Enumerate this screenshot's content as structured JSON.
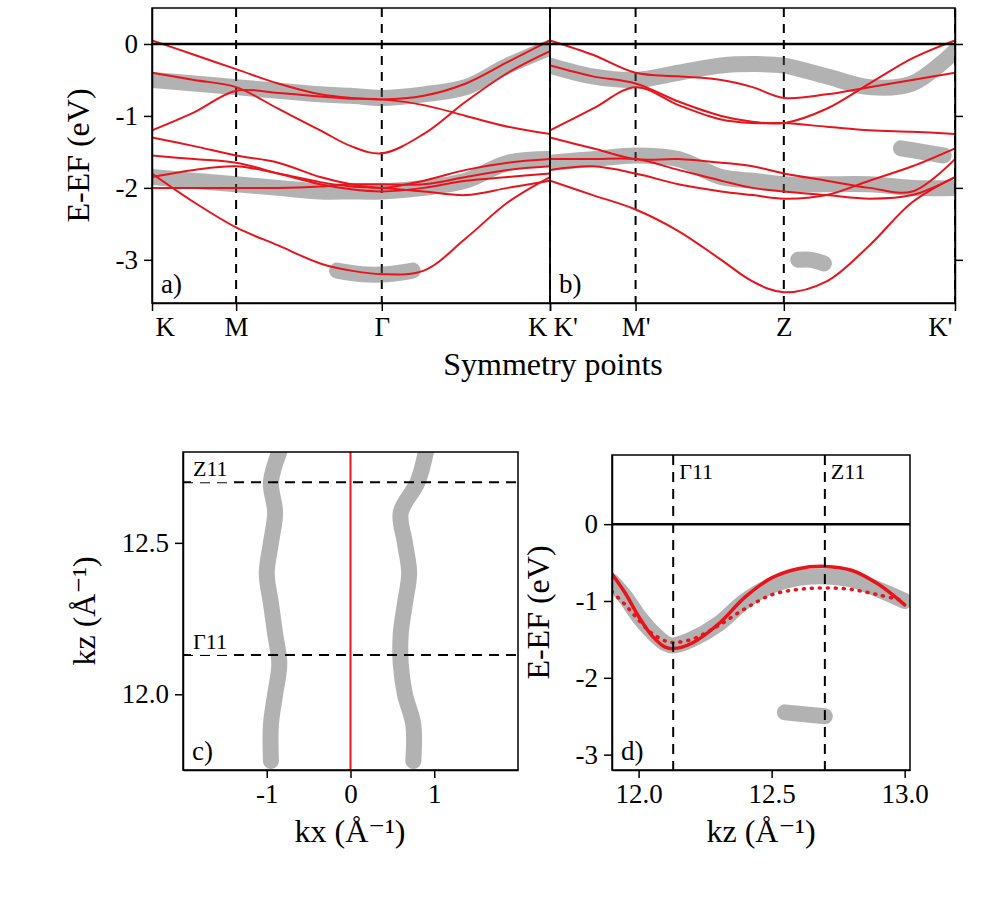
{
  "chart_data": [
    {
      "type": "line",
      "panel": "a)",
      "ylabel": "E-EF (eV)",
      "xlabel": "Symmetry points",
      "xlim": [
        0,
        4.732
      ],
      "ylim": [
        -3.6,
        0.5
      ],
      "xticks": [
        {
          "value": 0,
          "label": "K"
        },
        {
          "value": 1,
          "label": "M"
        },
        {
          "value": 2.732,
          "label": "Γ"
        },
        {
          "value": 4.732,
          "label": "K"
        }
      ],
      "yticks": [
        0,
        -1,
        -2,
        -3
      ],
      "grid": "x",
      "hline": 0,
      "x": [
        0,
        0.5,
        1,
        1.5,
        2,
        2.366,
        2.732,
        3.232,
        3.732,
        4.232,
        4.732
      ],
      "series": [
        {
          "color": "#555555",
          "line_style": "broad",
          "values": [
            -0.5,
            -0.55,
            -0.6,
            -0.65,
            -0.7,
            -0.72,
            -0.75,
            -0.7,
            -0.6,
            -0.3,
            -0.05
          ]
        },
        {
          "color": "#555555",
          "line_style": "broad",
          "values": [
            -1.85,
            -1.9,
            -1.95,
            -2.0,
            -2.05,
            -2.05,
            -2.05,
            -2.0,
            -1.9,
            -1.65,
            -1.6
          ]
        },
        {
          "color": "#555555",
          "line_style": "broad",
          "x": [
            2.2,
            2.5,
            2.8,
            3.1
          ],
          "values": [
            -3.15,
            -3.2,
            -3.2,
            -3.15
          ]
        },
        {
          "color": "#e8141c",
          "line_style": "solid",
          "values": [
            0.05,
            -0.15,
            -0.35,
            -0.55,
            -0.7,
            -0.75,
            -0.77,
            -0.72,
            -0.55,
            -0.25,
            0.05
          ]
        },
        {
          "color": "#e8141c",
          "line_style": "solid",
          "values": [
            -0.4,
            -0.5,
            -0.6,
            -0.9,
            -1.2,
            -1.42,
            -1.52,
            -1.25,
            -0.8,
            -0.4,
            -0.1
          ]
        },
        {
          "color": "#e8141c",
          "line_style": "solid",
          "values": [
            -1.2,
            -0.95,
            -0.65,
            -0.68,
            -0.73,
            -0.76,
            -0.77,
            -0.85,
            -1.0,
            -1.15,
            -1.25
          ]
        },
        {
          "color": "#e8141c",
          "line_style": "solid",
          "values": [
            -1.3,
            -1.42,
            -1.55,
            -1.65,
            -1.85,
            -1.95,
            -2.0,
            -1.9,
            -1.75,
            -1.65,
            -1.6
          ]
        },
        {
          "color": "#e8141c",
          "line_style": "solid",
          "values": [
            -1.55,
            -1.6,
            -1.65,
            -1.8,
            -1.95,
            -2.02,
            -2.05,
            -2.0,
            -1.9,
            -1.85,
            -1.8
          ]
        },
        {
          "color": "#e8141c",
          "line_style": "solid",
          "values": [
            -1.85,
            -1.75,
            -1.7,
            -1.8,
            -1.92,
            -1.98,
            -2.0,
            -2.05,
            -2.1,
            -2.0,
            -1.9
          ]
        },
        {
          "color": "#e8141c",
          "line_style": "solid",
          "values": [
            -2.0,
            -2.0,
            -2.0,
            -2.0,
            -1.98,
            -1.95,
            -1.95,
            -1.95,
            -1.85,
            -1.75,
            -1.7
          ]
        },
        {
          "color": "#e8141c",
          "line_style": "solid",
          "values": [
            -1.8,
            -2.2,
            -2.55,
            -2.8,
            -3.05,
            -3.15,
            -3.2,
            -3.15,
            -2.7,
            -2.2,
            -1.85
          ]
        }
      ]
    },
    {
      "type": "line",
      "panel": "b)",
      "tick_labels": "x",
      "xlim": [
        0,
        4.732
      ],
      "ylim": [
        -3.6,
        0.5
      ],
      "xticks": [
        {
          "value": 0,
          "label": "K'"
        },
        {
          "value": 1,
          "label": "M'"
        },
        {
          "value": 2.732,
          "label": "Z"
        },
        {
          "value": 4.732,
          "label": "K'"
        }
      ],
      "yticks": [
        0,
        -1,
        -2,
        -3
      ],
      "grid": "x",
      "hline": 0,
      "x": [
        0,
        0.5,
        1,
        1.5,
        2,
        2.366,
        2.732,
        3.232,
        3.732,
        4.232,
        4.732
      ],
      "series": [
        {
          "color": "#555555",
          "line_style": "broad",
          "values": [
            -0.3,
            -0.45,
            -0.5,
            -0.4,
            -0.3,
            -0.28,
            -0.3,
            -0.45,
            -0.6,
            -0.55,
            -0.1
          ]
        },
        {
          "color": "#555555",
          "line_style": "broad",
          "values": [
            -1.65,
            -1.6,
            -1.55,
            -1.6,
            -1.85,
            -1.9,
            -1.95,
            -1.95,
            -1.95,
            -2.0,
            -2.0
          ]
        },
        {
          "color": "#555555",
          "line_style": "broad",
          "x": [
            4.1,
            4.35,
            4.6
          ],
          "values": [
            -1.45,
            -1.5,
            -1.55
          ]
        },
        {
          "color": "#555555",
          "line_style": "broad",
          "x": [
            2.9,
            3.05,
            3.2
          ],
          "values": [
            -3.0,
            -3.0,
            -3.05
          ]
        },
        {
          "color": "#e8141c",
          "line_style": "solid",
          "values": [
            0.05,
            -0.15,
            -0.4,
            -0.45,
            -0.5,
            -0.6,
            -0.75,
            -0.7,
            -0.6,
            -0.5,
            -0.4
          ]
        },
        {
          "color": "#e8141c",
          "line_style": "solid",
          "values": [
            -0.3,
            -0.45,
            -0.55,
            -0.8,
            -1.0,
            -1.08,
            -1.1,
            -0.9,
            -0.55,
            -0.2,
            0.05
          ]
        },
        {
          "color": "#e8141c",
          "line_style": "solid",
          "values": [
            -1.2,
            -0.9,
            -0.6,
            -0.85,
            -1.05,
            -1.1,
            -1.1,
            -1.15,
            -1.2,
            -1.22,
            -1.25
          ]
        },
        {
          "color": "#e8141c",
          "line_style": "solid",
          "values": [
            -1.3,
            -1.45,
            -1.6,
            -1.6,
            -1.65,
            -1.7,
            -1.8,
            -1.9,
            -2.0,
            -2.05,
            -1.6
          ]
        },
        {
          "color": "#e8141c",
          "line_style": "solid",
          "values": [
            -1.6,
            -1.6,
            -1.6,
            -1.75,
            -1.9,
            -2.0,
            -2.05,
            -2.1,
            -2.15,
            -2.1,
            -1.85
          ]
        },
        {
          "color": "#e8141c",
          "line_style": "solid",
          "values": [
            -1.75,
            -1.7,
            -1.8,
            -1.95,
            -2.05,
            -2.1,
            -2.15,
            -2.1,
            -1.9,
            -1.7,
            -1.45
          ]
        },
        {
          "color": "#e8141c",
          "line_style": "solid",
          "values": [
            -1.9,
            -2.1,
            -2.3,
            -2.6,
            -3.0,
            -3.3,
            -3.45,
            -3.3,
            -2.8,
            -2.2,
            -1.85
          ]
        }
      ]
    },
    {
      "type": "line",
      "panel": "c)",
      "xlabel": "kx (Å⁻¹)",
      "ylabel": "kz (Å⁻¹)",
      "xlim": [
        -2,
        2
      ],
      "ylim": [
        11.75,
        12.8
      ],
      "xticks": [
        -1,
        0,
        1
      ],
      "yticks": [
        {
          "value": 12,
          "label": "12.0"
        },
        {
          "value": 12.5,
          "label": "12.5"
        }
      ],
      "annotations": [
        {
          "text": "Z11",
          "y": 12.7
        },
        {
          "text": "Γ11",
          "y": 12.13
        }
      ],
      "series": [
        {
          "color": "#555555",
          "line_style": "broad",
          "x": [
            -0.95,
            -0.95,
            -0.9,
            -0.85,
            -0.9,
            -0.95,
            -1.0,
            -0.95,
            -0.9,
            -0.95,
            -0.85
          ],
          "values": [
            11.78,
            11.9,
            12.0,
            12.1,
            12.2,
            12.3,
            12.4,
            12.5,
            12.6,
            12.7,
            12.8
          ]
        },
        {
          "color": "#555555",
          "line_style": "broad",
          "x": [
            0.75,
            0.75,
            0.65,
            0.6,
            0.6,
            0.65,
            0.7,
            0.65,
            0.6,
            0.8,
            0.9
          ],
          "values": [
            11.78,
            11.9,
            12.0,
            12.1,
            12.2,
            12.3,
            12.4,
            12.5,
            12.6,
            12.7,
            12.8
          ]
        },
        {
          "color": "#e8141c",
          "line_style": "solid",
          "x": [
            0,
            0
          ],
          "values": [
            11.75,
            12.8
          ]
        }
      ]
    },
    {
      "type": "line",
      "panel": "d)",
      "xlabel": "kz (Å⁻¹)",
      "ylabel": "E-EF (eV)",
      "xlim": [
        11.9,
        13.02
      ],
      "ylim": [
        -3.2,
        0.9
      ],
      "xticks": [
        {
          "value": 12,
          "label": "12.0"
        },
        {
          "value": 12.5,
          "label": "12.5"
        },
        {
          "value": 13,
          "label": "13.0"
        }
      ],
      "yticks": [
        0,
        -1,
        -2,
        -3
      ],
      "hline": 0,
      "annotations": [
        {
          "text": "Γ11",
          "x": 12.13
        },
        {
          "text": "Z11",
          "x": 12.7
        }
      ],
      "x": [
        11.9,
        11.95,
        12.0,
        12.05,
        12.1,
        12.13,
        12.2,
        12.3,
        12.4,
        12.5,
        12.6,
        12.7,
        12.8,
        12.9,
        13.0
      ],
      "series": [
        {
          "color": "#555555",
          "line_style": "broad",
          "values": [
            -0.75,
            -0.95,
            -1.2,
            -1.4,
            -1.55,
            -1.58,
            -1.5,
            -1.3,
            -1.0,
            -0.8,
            -0.7,
            -0.68,
            -0.72,
            -0.85,
            -1.0
          ]
        },
        {
          "color": "#555555",
          "line_style": "broad",
          "x": [
            12.55,
            12.7
          ],
          "values": [
            -2.45,
            -2.5
          ]
        },
        {
          "color": "#e8141c",
          "line_style": "solid",
          "values": [
            -0.65,
            -0.9,
            -1.2,
            -1.45,
            -1.6,
            -1.62,
            -1.55,
            -1.3,
            -0.95,
            -0.7,
            -0.58,
            -0.55,
            -0.6,
            -0.78,
            -1.05
          ]
        },
        {
          "color": "#e8141c",
          "line_style": "dotted",
          "values": [
            -0.88,
            -1.05,
            -1.25,
            -1.42,
            -1.52,
            -1.54,
            -1.5,
            -1.32,
            -1.1,
            -0.92,
            -0.85,
            -0.83,
            -0.85,
            -0.92,
            -1.0
          ]
        }
      ]
    }
  ]
}
